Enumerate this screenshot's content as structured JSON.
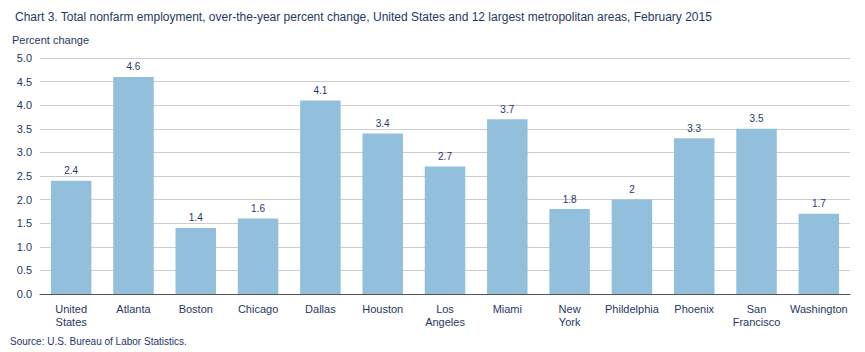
{
  "chart_data": {
    "type": "bar",
    "title": "Chart 3. Total nonfarm employment, over-the-year percent change, United States and 12 largest metropolitan areas, February 2015",
    "ylabel": "Percent change",
    "source": "Source: U.S. Bureau of Labor Statistics.",
    "categories": [
      "United\nStates",
      "Atlanta",
      "Boston",
      "Chicago",
      "Dallas",
      "Houston",
      "Los\nAngeles",
      "Miami",
      "New\nYork",
      "Phildelphia",
      "Phoenix",
      "San\nFrancisco",
      "Washington"
    ],
    "values": [
      2.4,
      4.6,
      1.4,
      1.6,
      4.1,
      3.4,
      2.7,
      3.7,
      1.8,
      2.0,
      3.3,
      3.5,
      1.7
    ],
    "color": "#92C0DC",
    "ylim": [
      0,
      5.0
    ],
    "yticks": [
      {
        "value": 0,
        "label": "0.0"
      },
      0.5,
      {
        "value": 1,
        "label": "1.0"
      },
      1.5,
      {
        "value": 2,
        "label": "2.0"
      },
      2.5,
      {
        "value": 3,
        "label": "3.0"
      },
      3.5,
      {
        "value": 4,
        "label": "4.0"
      },
      4.5,
      {
        "value": 5,
        "label": "5.0"
      }
    ],
    "grid": true,
    "data_labels": true
  }
}
